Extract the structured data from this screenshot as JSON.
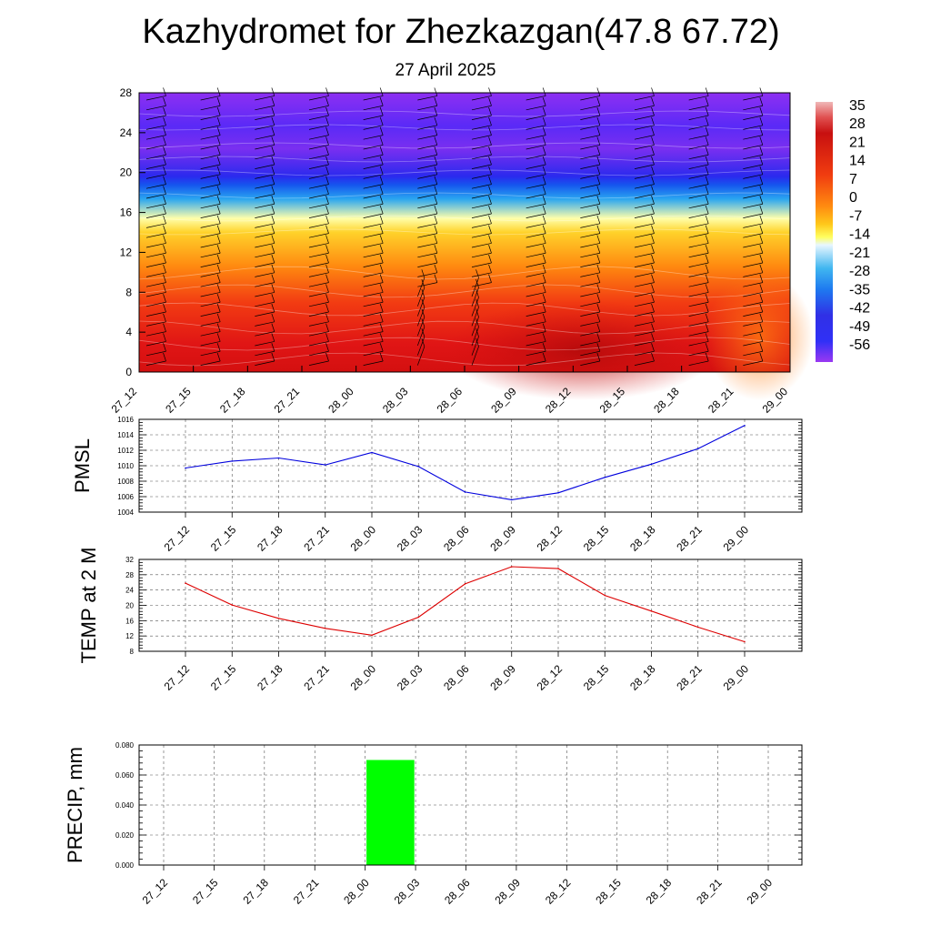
{
  "header": {
    "title": "Kazhydromet for Zhezkazgan(47.8 67.72)",
    "subtitle": "27 April 2025"
  },
  "chart_data": [
    {
      "type": "heatmap",
      "title": "",
      "x_tick_labels": [
        "27_12",
        "27_15",
        "27_18",
        "27_21",
        "28_00",
        "28_03",
        "28_06",
        "28_09",
        "28_12",
        "28_15",
        "28_18",
        "28_21",
        "29_00"
      ],
      "y_tick_labels": [
        "0",
        "4",
        "8",
        "12",
        "16",
        "20",
        "24",
        "28"
      ],
      "ylim": [
        0,
        28
      ],
      "colorbar": {
        "labels": [
          "35",
          "28",
          "21",
          "14",
          "7",
          "0",
          "-7",
          "-14",
          "-21",
          "-28",
          "-35",
          "-42",
          "-49",
          "-56"
        ],
        "values": [
          35,
          28,
          21,
          14,
          7,
          0,
          -7,
          -14,
          -21,
          -28,
          -35,
          -42,
          -49,
          -56
        ]
      },
      "overlays": [
        "wind-barbs",
        "contour-lines"
      ],
      "grid": false
    },
    {
      "type": "line",
      "ylabel": "PMSL",
      "x": [
        "27_12",
        "27_15",
        "27_18",
        "27_21",
        "28_00",
        "28_03",
        "28_06",
        "28_09",
        "28_12",
        "28_15",
        "28_18",
        "28_21",
        "29_00"
      ],
      "series": [
        {
          "color": "#0000dd",
          "values": [
            1009.7,
            1010.6,
            1011.0,
            1010.1,
            1011.7,
            1009.9,
            1006.6,
            1005.6,
            1006.5,
            1008.5,
            1010.2,
            1012.2,
            1015.2
          ]
        }
      ],
      "ylim": [
        1004,
        1016
      ],
      "y_ticks": [
        "1004",
        "1006",
        "1008",
        "1010",
        "1012",
        "1014",
        "1016"
      ],
      "grid": true
    },
    {
      "type": "line",
      "ylabel": "TEMP at 2 M",
      "x": [
        "27_12",
        "27_15",
        "27_18",
        "27_21",
        "28_00",
        "28_03",
        "28_06",
        "28_09",
        "28_12",
        "28_15",
        "28_18",
        "28_21",
        "29_00"
      ],
      "series": [
        {
          "color": "#dd0000",
          "values": [
            25.8,
            20.1,
            16.6,
            14.0,
            12.2,
            16.9,
            25.6,
            30.1,
            29.6,
            22.6,
            18.5,
            14.3,
            10.5
          ]
        }
      ],
      "ylim": [
        8,
        32
      ],
      "y_ticks": [
        "8",
        "12",
        "16",
        "20",
        "24",
        "28",
        "32"
      ],
      "grid": true
    },
    {
      "type": "bar",
      "ylabel": "PRECIP, mm",
      "categories": [
        "27_12",
        "27_15",
        "27_18",
        "27_21",
        "28_00",
        "28_03",
        "28_06",
        "28_09",
        "28_12",
        "28_15",
        "28_18",
        "28_21",
        "29_00"
      ],
      "series": [
        {
          "color": "#00ff00",
          "values": [
            0,
            0,
            0,
            0,
            0,
            0.07,
            0,
            0,
            0,
            0,
            0,
            0,
            0
          ]
        }
      ],
      "ylim": [
        0,
        0.08
      ],
      "y_ticks": [
        "0.000",
        "0.020",
        "0.040",
        "0.060",
        "0.080"
      ],
      "grid": true
    }
  ]
}
